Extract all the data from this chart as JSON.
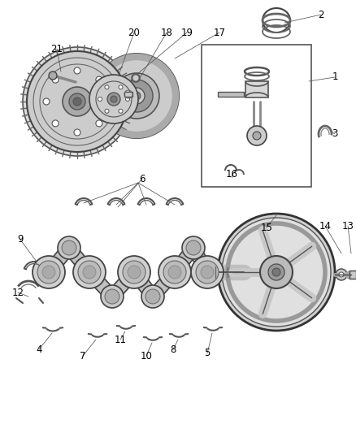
{
  "background_color": "#ffffff",
  "fig_width": 4.38,
  "fig_height": 5.33,
  "dpi": 100,
  "gray_light": "#d4d4d4",
  "gray_mid": "#b0b0b0",
  "gray_dark": "#888888",
  "line_color": "#444444",
  "label_color": "#000000",
  "label_fontsize": 8.5,
  "leader_lw": 0.6,
  "leader_color": "#555555"
}
